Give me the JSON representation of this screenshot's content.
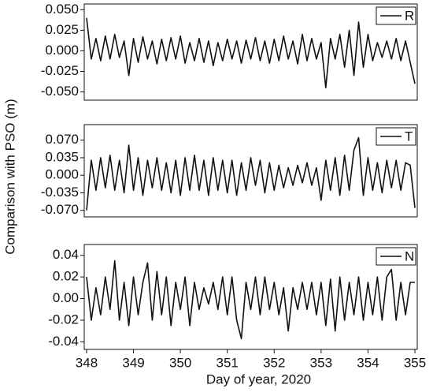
{
  "chart_data": [
    {
      "type": "line",
      "x": [
        348.0,
        348.1,
        348.2,
        348.3,
        348.4,
        348.5,
        348.6,
        348.7,
        348.8,
        348.9,
        349.0,
        349.1,
        349.2,
        349.3,
        349.4,
        349.5,
        349.6,
        349.7,
        349.8,
        349.9,
        350.0,
        350.1,
        350.2,
        350.3,
        350.4,
        350.5,
        350.6,
        350.7,
        350.8,
        350.9,
        351.0,
        351.1,
        351.2,
        351.3,
        351.4,
        351.5,
        351.6,
        351.7,
        351.8,
        351.9,
        352.0,
        352.1,
        352.2,
        352.3,
        352.4,
        352.5,
        352.6,
        352.7,
        352.8,
        352.9,
        353.0,
        353.1,
        353.2,
        353.3,
        353.4,
        353.5,
        353.6,
        353.7,
        353.8,
        353.9,
        354.0,
        354.1,
        354.2,
        354.3,
        354.4,
        354.5,
        354.6,
        354.7,
        354.8,
        354.9,
        355.0
      ],
      "series": [
        {
          "name": "R",
          "color": "#111111",
          "values": [
            0.04,
            -0.01,
            0.015,
            -0.012,
            0.018,
            -0.01,
            0.02,
            -0.008,
            0.012,
            -0.03,
            0.015,
            -0.014,
            0.017,
            -0.01,
            0.012,
            -0.016,
            0.014,
            -0.012,
            0.016,
            -0.01,
            0.018,
            -0.015,
            0.01,
            -0.012,
            0.015,
            -0.014,
            0.012,
            -0.018,
            0.01,
            -0.012,
            0.014,
            -0.01,
            0.012,
            -0.015,
            0.013,
            -0.01,
            0.016,
            -0.012,
            0.012,
            -0.015,
            0.014,
            -0.012,
            0.018,
            -0.01,
            0.012,
            -0.016,
            0.02,
            -0.012,
            0.015,
            -0.01,
            0.01,
            -0.045,
            0.015,
            -0.01,
            0.02,
            -0.02,
            0.025,
            -0.03,
            0.035,
            -0.02,
            0.02,
            -0.012,
            0.01,
            -0.008,
            0.012,
            -0.01,
            0.015,
            -0.012,
            0.012,
            -0.014,
            -0.04
          ]
        }
      ],
      "xlim": [
        347.95,
        355.05
      ],
      "ylim": [
        -0.06,
        0.057
      ],
      "yticks": [
        {
          "value": 0.05,
          "label": "0.050"
        },
        0.025,
        {
          "value": 0,
          "label": "0.000"
        },
        -0.025,
        {
          "value": -0.05,
          "label": "-0.050"
        }
      ],
      "legend": "upper right"
    },
    {
      "type": "line",
      "ylabel": "Comparison with PSO (m)",
      "x": [
        348.0,
        348.1,
        348.2,
        348.3,
        348.4,
        348.5,
        348.6,
        348.7,
        348.8,
        348.9,
        349.0,
        349.1,
        349.2,
        349.3,
        349.4,
        349.5,
        349.6,
        349.7,
        349.8,
        349.9,
        350.0,
        350.1,
        350.2,
        350.3,
        350.4,
        350.5,
        350.6,
        350.7,
        350.8,
        350.9,
        351.0,
        351.1,
        351.2,
        351.3,
        351.4,
        351.5,
        351.6,
        351.7,
        351.8,
        351.9,
        352.0,
        352.1,
        352.2,
        352.3,
        352.4,
        352.5,
        352.6,
        352.7,
        352.8,
        352.9,
        353.0,
        353.1,
        353.2,
        353.3,
        353.4,
        353.5,
        353.6,
        353.7,
        353.8,
        353.9,
        354.0,
        354.1,
        354.2,
        354.3,
        354.4,
        354.5,
        354.6,
        354.7,
        354.8,
        354.9,
        355.0
      ],
      "series": [
        {
          "name": "T",
          "color": "#111111",
          "values": [
            -0.07,
            0.03,
            -0.03,
            0.035,
            -0.025,
            0.04,
            -0.03,
            0.03,
            -0.035,
            0.06,
            -0.03,
            0.035,
            -0.04,
            0.03,
            -0.025,
            0.035,
            -0.03,
            0.025,
            -0.035,
            0.03,
            -0.04,
            0.035,
            -0.03,
            0.04,
            -0.03,
            0.03,
            -0.04,
            0.035,
            -0.03,
            0.03,
            -0.035,
            0.03,
            -0.04,
            0.025,
            -0.03,
            0.035,
            -0.02,
            0.03,
            -0.035,
            0.025,
            -0.03,
            0.02,
            -0.025,
            0.015,
            -0.02,
            0.02,
            -0.015,
            0.025,
            -0.02,
            0.015,
            -0.05,
            0.03,
            -0.03,
            0.035,
            -0.04,
            0.04,
            -0.03,
            0.05,
            0.075,
            -0.04,
            0.035,
            -0.03,
            0.025,
            -0.035,
            0.03,
            -0.025,
            0.03,
            -0.03,
            0.025,
            0.02,
            -0.065
          ]
        }
      ],
      "xlim": [
        347.95,
        355.05
      ],
      "ylim": [
        -0.083,
        0.101
      ],
      "yticks": [
        {
          "value": 0.07,
          "label": "0.070"
        },
        0.035,
        {
          "value": 0,
          "label": "0.000"
        },
        -0.035,
        {
          "value": -0.07,
          "label": "-0.070"
        }
      ],
      "legend": "upper right"
    },
    {
      "type": "line",
      "xlabel": "Day of year, 2020",
      "x": [
        348.0,
        348.1,
        348.2,
        348.3,
        348.4,
        348.5,
        348.6,
        348.7,
        348.8,
        348.9,
        349.0,
        349.1,
        349.2,
        349.3,
        349.4,
        349.5,
        349.6,
        349.7,
        349.8,
        349.9,
        350.0,
        350.1,
        350.2,
        350.3,
        350.4,
        350.5,
        350.6,
        350.7,
        350.8,
        350.9,
        351.0,
        351.1,
        351.2,
        351.3,
        351.4,
        351.5,
        351.6,
        351.7,
        351.8,
        351.9,
        352.0,
        352.1,
        352.2,
        352.3,
        352.4,
        352.5,
        352.6,
        352.7,
        352.8,
        352.9,
        353.0,
        353.1,
        353.2,
        353.3,
        353.4,
        353.5,
        353.6,
        353.7,
        353.8,
        353.9,
        354.0,
        354.1,
        354.2,
        354.3,
        354.4,
        354.5,
        354.6,
        354.7,
        354.8,
        354.9,
        355.0
      ],
      "series": [
        {
          "name": "N",
          "color": "#111111",
          "values": [
            0.02,
            -0.02,
            0.01,
            -0.015,
            0.02,
            -0.01,
            0.035,
            -0.02,
            0.015,
            -0.025,
            0.02,
            -0.015,
            0.015,
            0.033,
            -0.02,
            0.025,
            -0.015,
            0.02,
            -0.025,
            0.015,
            -0.01,
            0.02,
            -0.025,
            0.015,
            -0.01,
            0.01,
            -0.005,
            0.015,
            -0.01,
            0.02,
            -0.015,
            0.02,
            -0.02,
            -0.037,
            0.015,
            -0.01,
            0.02,
            -0.015,
            0.02,
            -0.01,
            0.015,
            -0.015,
            0.01,
            -0.03,
            0.01,
            -0.01,
            0.015,
            -0.01,
            0.015,
            -0.015,
            0.015,
            -0.025,
            0.018,
            -0.03,
            0.02,
            -0.02,
            0.015,
            -0.015,
            0.02,
            -0.02,
            0.015,
            -0.015,
            0.02,
            -0.02,
            0.02,
            0.027,
            -0.02,
            0.015,
            -0.015,
            0.015,
            0.015
          ]
        }
      ],
      "xlim": [
        347.95,
        355.05
      ],
      "xticks": [
        348,
        349,
        350,
        351,
        352,
        353,
        354,
        355
      ],
      "ylim": [
        -0.047,
        0.05
      ],
      "yticks": [
        0.04,
        0.02,
        {
          "value": 0,
          "label": "0.00"
        },
        -0.02,
        -0.04
      ],
      "legend": "upper right"
    }
  ]
}
